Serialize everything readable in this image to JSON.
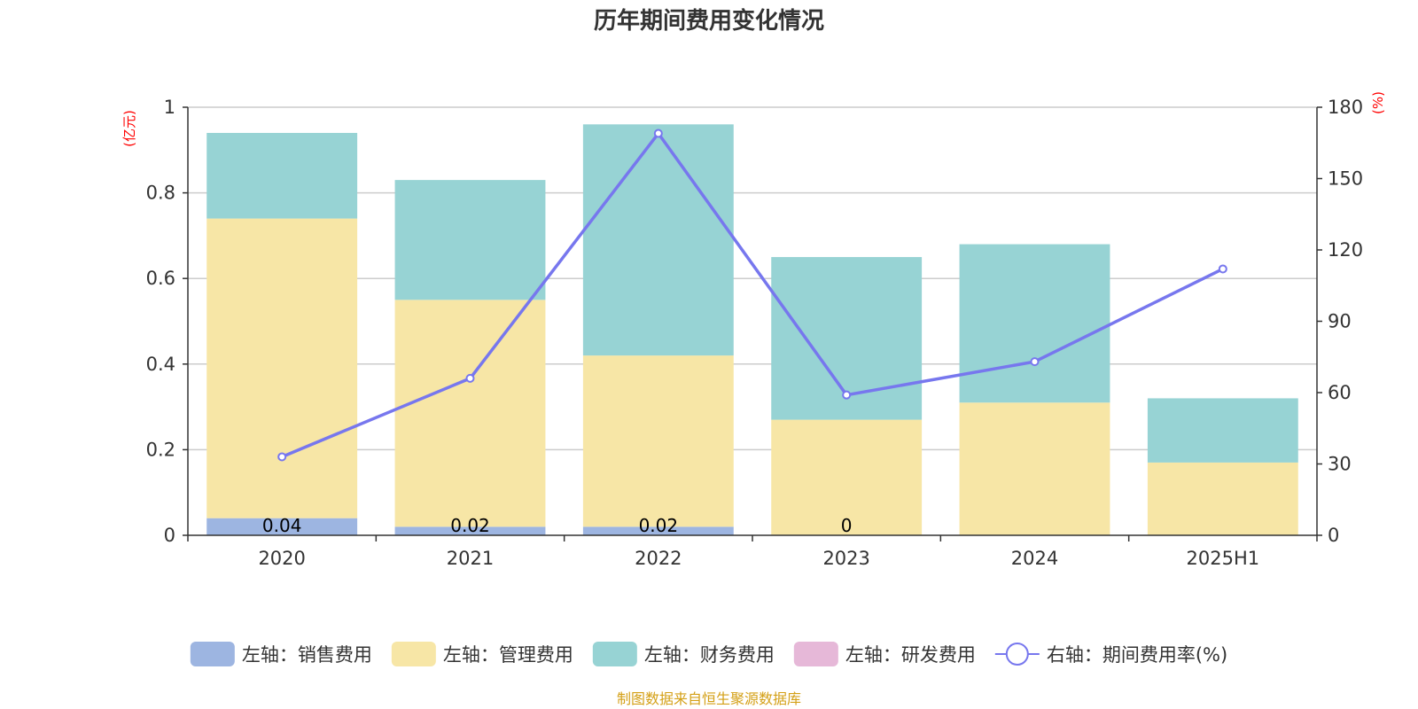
{
  "chart_data": {
    "type": "bar",
    "title": "历年期间费用变化情况",
    "categories": [
      "2020",
      "2021",
      "2022",
      "2023",
      "2024",
      "2025H1"
    ],
    "left_axis": {
      "unit_label": "(亿元)",
      "ylim": [
        0,
        1
      ],
      "ticks": [
        "0",
        "0.2",
        "0.4",
        "0.6",
        "0.8",
        "1"
      ]
    },
    "right_axis": {
      "unit_label": "(%)",
      "ylim": [
        0,
        180
      ],
      "ticks": [
        "0",
        "30",
        "60",
        "90",
        "120",
        "150",
        "180"
      ]
    },
    "stacked": true,
    "grid": true,
    "legend_position": "bottom",
    "series": [
      {
        "name": "左轴：销售费用",
        "type": "bar",
        "axis": "left",
        "color": "#9db5e1",
        "values": [
          0.04,
          0.02,
          0.02,
          0,
          0,
          0
        ],
        "labels": [
          "0.04",
          "0.02",
          "0.02",
          "0",
          "",
          ""
        ]
      },
      {
        "name": "左轴：管理费用",
        "type": "bar",
        "axis": "left",
        "color": "#f7e6a6",
        "values": [
          0.7,
          0.53,
          0.4,
          0.27,
          0.31,
          0.17
        ]
      },
      {
        "name": "左轴：财务费用",
        "type": "bar",
        "axis": "left",
        "color": "#97d3d4",
        "values": [
          0.2,
          0.28,
          0.54,
          0.38,
          0.37,
          0.15
        ]
      },
      {
        "name": "左轴：研发费用",
        "type": "bar",
        "axis": "left",
        "color": "#e6b8d8",
        "values": [
          0,
          0,
          0,
          0,
          0,
          0
        ]
      },
      {
        "name": "右轴：期间费用率(%)",
        "type": "line",
        "axis": "right",
        "color": "#7777ee",
        "values": [
          33,
          66,
          169,
          59,
          73,
          112
        ]
      }
    ]
  },
  "footer": {
    "source": "制图数据来自恒生聚源数据库"
  }
}
